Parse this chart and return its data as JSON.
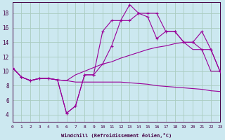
{
  "xlabel": "Windchill (Refroidissement éolien,°C)",
  "bg_color": "#cce8f0",
  "grid_color": "#aaccc0",
  "line_color": "#990099",
  "xmin": 0,
  "xmax": 23,
  "ymin": 3,
  "ymax": 19.5,
  "yticks": [
    4,
    6,
    8,
    10,
    12,
    14,
    16,
    18
  ],
  "xticks": [
    0,
    1,
    2,
    3,
    4,
    5,
    6,
    7,
    8,
    9,
    10,
    11,
    12,
    13,
    14,
    15,
    16,
    17,
    18,
    19,
    20,
    21,
    22,
    23
  ],
  "s1_x": [
    0,
    1,
    2,
    3,
    4,
    5,
    6,
    7,
    8,
    9,
    10,
    11,
    12,
    13,
    14,
    15,
    16,
    17,
    18,
    19,
    20,
    21,
    22,
    23
  ],
  "s1_y": [
    10.5,
    9.2,
    8.7,
    9.0,
    9.0,
    8.8,
    8.7,
    8.5,
    8.5,
    8.5,
    8.5,
    8.5,
    8.5,
    8.4,
    8.3,
    8.2,
    8.0,
    7.9,
    7.8,
    7.7,
    7.6,
    7.5,
    7.3,
    7.2
  ],
  "s2_x": [
    0,
    1,
    2,
    3,
    4,
    5,
    6,
    7,
    8,
    9,
    10,
    11,
    12,
    13,
    14,
    15,
    16,
    17,
    18,
    19,
    20,
    21,
    22,
    23
  ],
  "s2_y": [
    10.5,
    9.2,
    8.7,
    9.0,
    9.0,
    8.8,
    8.7,
    9.5,
    10.0,
    10.5,
    11.0,
    11.3,
    11.8,
    12.2,
    12.6,
    13.0,
    13.3,
    13.5,
    13.8,
    14.0,
    13.0,
    13.0,
    10.0,
    10.0
  ],
  "s3_x": [
    0,
    1,
    2,
    3,
    4,
    5,
    6,
    7,
    8,
    9,
    10,
    11,
    12,
    13,
    14,
    15,
    16,
    17,
    18,
    19,
    20,
    21,
    22,
    23
  ],
  "s3_y": [
    10.5,
    9.2,
    8.7,
    9.0,
    9.0,
    8.8,
    4.2,
    5.2,
    9.5,
    9.5,
    11.0,
    13.5,
    17.0,
    17.0,
    18.0,
    17.5,
    14.5,
    15.5,
    15.5,
    14.0,
    14.0,
    13.0,
    13.0,
    10.0
  ],
  "s4_x": [
    0,
    1,
    2,
    3,
    4,
    5,
    6,
    7,
    8,
    9,
    10,
    11,
    12,
    13,
    14,
    15,
    16,
    17,
    18,
    19,
    20,
    21,
    22,
    23
  ],
  "s4_y": [
    10.5,
    9.2,
    8.7,
    9.0,
    9.0,
    8.8,
    4.2,
    5.2,
    9.5,
    9.5,
    15.5,
    17.0,
    17.0,
    19.2,
    18.0,
    18.0,
    18.0,
    15.5,
    15.5,
    14.0,
    14.0,
    15.5,
    13.0,
    10.0
  ]
}
